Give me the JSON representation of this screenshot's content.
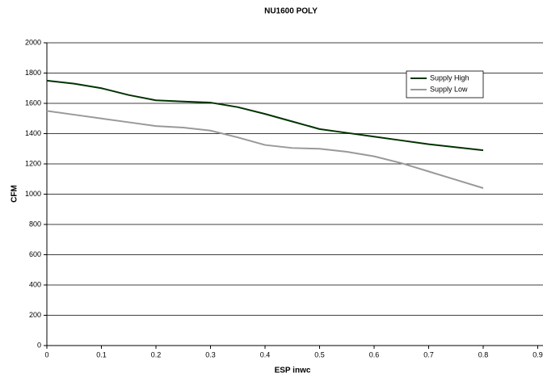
{
  "chart_data": {
    "type": "line",
    "title": "NU1600 POLY",
    "x_label": "ESP inwc",
    "y_label": "CFM",
    "x": [
      0,
      0.05,
      0.1,
      0.15,
      0.2,
      0.25,
      0.3,
      0.35,
      0.4,
      0.45,
      0.5,
      0.55,
      0.6,
      0.65,
      0.7,
      0.75,
      0.8
    ],
    "series": [
      {
        "name": "Supply High",
        "color": "#003300",
        "values": [
          1750,
          1730,
          1700,
          1655,
          1620,
          1612,
          1605,
          1575,
          1530,
          1480,
          1430,
          1405,
          1380,
          1355,
          1330,
          1310,
          1290
        ]
      },
      {
        "name": "Supply Low",
        "color": "#999999",
        "values": [
          1550,
          1525,
          1500,
          1475,
          1450,
          1440,
          1420,
          1375,
          1325,
          1305,
          1300,
          1280,
          1250,
          1205,
          1150,
          1095,
          1040
        ]
      }
    ],
    "xlim": [
      0,
      0.9
    ],
    "xticks": [
      0,
      0.1,
      0.2,
      0.3,
      0.4,
      0.5,
      0.6,
      0.7,
      0.8,
      0.9
    ],
    "ylim": [
      0,
      2000
    ],
    "yticks": [
      0,
      200,
      400,
      600,
      800,
      1000,
      1200,
      1400,
      1600,
      1800,
      2000
    ],
    "grid": true
  }
}
